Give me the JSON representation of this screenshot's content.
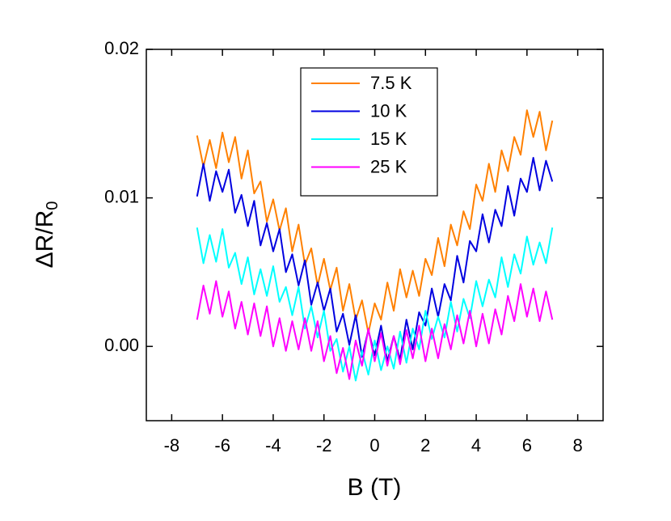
{
  "chart_data": {
    "type": "line",
    "xlabel": "B (T)",
    "ylabel": "ΔR/R",
    "ylabel_sub": "0",
    "xlim": [
      -9,
      9
    ],
    "ylim": [
      -0.005,
      0.02
    ],
    "xticks": [
      -8,
      -6,
      -4,
      -2,
      0,
      2,
      4,
      6,
      8
    ],
    "yticks": [
      {
        "value": 0,
        "label": "0.00"
      },
      0.01,
      0.02
    ],
    "legend": "upper center",
    "x": [
      -7,
      -6.75,
      -6.5,
      -6.25,
      -6,
      -5.75,
      -5.5,
      -5.25,
      -5,
      -4.75,
      -4.5,
      -4.25,
      -4,
      -3.75,
      -3.5,
      -3.25,
      -3,
      -2.75,
      -2.5,
      -2.25,
      -2,
      -1.75,
      -1.5,
      -1.25,
      -1,
      -0.75,
      -0.5,
      -0.25,
      0,
      0.25,
      0.5,
      0.75,
      1,
      1.25,
      1.5,
      1.75,
      2,
      2.25,
      2.5,
      2.75,
      3,
      3.25,
      3.5,
      3.75,
      4,
      4.25,
      4.5,
      4.75,
      5,
      5.25,
      5.5,
      5.75,
      6,
      6.25,
      6.5,
      6.75,
      7
    ],
    "series": [
      {
        "name": "7.5 K",
        "color": "#ff8000",
        "values": [
          0.0142,
          0.0121,
          0.0139,
          0.012,
          0.0144,
          0.0124,
          0.0141,
          0.0113,
          0.0132,
          0.0103,
          0.0111,
          0.0084,
          0.0099,
          0.0078,
          0.0093,
          0.0064,
          0.0082,
          0.0055,
          0.0066,
          0.0041,
          0.0059,
          0.0038,
          0.0053,
          0.0024,
          0.0042,
          0.0018,
          0.0031,
          0.0009,
          0.0029,
          0.0018,
          0.0043,
          0.0024,
          0.0052,
          0.0033,
          0.0051,
          0.0034,
          0.0059,
          0.0048,
          0.0073,
          0.0054,
          0.0082,
          0.0068,
          0.0091,
          0.0079,
          0.0109,
          0.0098,
          0.0123,
          0.0104,
          0.0132,
          0.0118,
          0.0141,
          0.0129,
          0.0159,
          0.0141,
          0.0158,
          0.0132,
          0.0152
        ]
      },
      {
        "name": "10 K",
        "color": "#0000e0",
        "values": [
          0.0101,
          0.0123,
          0.0098,
          0.0118,
          0.0104,
          0.0119,
          0.009,
          0.0102,
          0.0081,
          0.0098,
          0.0068,
          0.0083,
          0.0064,
          0.0079,
          0.005,
          0.0062,
          0.0041,
          0.0058,
          0.0028,
          0.0043,
          0.0024,
          0.0039,
          0.001,
          0.0022,
          0.0001,
          0.0021,
          -0.0007,
          0.0011,
          -0.0006,
          0.0014,
          -0.001,
          0.0007,
          -0.0009,
          0.0018,
          -0.0002,
          0.0023,
          0.0014,
          0.0039,
          0.002,
          0.0042,
          0.0031,
          0.0061,
          0.0043,
          0.0071,
          0.0064,
          0.0089,
          0.007,
          0.0092,
          0.0081,
          0.0108,
          0.0088,
          0.0113,
          0.0104,
          0.0127,
          0.0105,
          0.0125,
          0.0111
        ]
      },
      {
        "name": "15 K",
        "color": "#00ffff",
        "values": [
          0.008,
          0.0056,
          0.0075,
          0.0057,
          0.0079,
          0.0053,
          0.0063,
          0.0042,
          0.006,
          0.0035,
          0.0052,
          0.0034,
          0.0054,
          0.003,
          0.004,
          0.0021,
          0.004,
          0.0012,
          0.0027,
          0.0006,
          0.0024,
          -0.0003,
          0.0005,
          -0.0017,
          0.0,
          -0.0023,
          -0.0003,
          -0.0019,
          0.0004,
          -0.0016,
          0.0,
          -0.0015,
          0.001,
          -0.0011,
          0.0012,
          -0.0002,
          0.0024,
          0.0005,
          0.002,
          0.0006,
          0.003,
          0.001,
          0.0032,
          0.0019,
          0.0044,
          0.0027,
          0.0045,
          0.0033,
          0.006,
          0.004,
          0.0062,
          0.0049,
          0.0074,
          0.0055,
          0.007,
          0.0056,
          0.008
        ]
      },
      {
        "name": "25 K",
        "color": "#ff00ff",
        "values": [
          0.0018,
          0.0041,
          0.0022,
          0.0044,
          0.002,
          0.0037,
          0.0012,
          0.003,
          0.0008,
          0.0029,
          0.0007,
          0.0027,
          0.0,
          0.0019,
          -0.0003,
          0.0017,
          -0.0002,
          0.0019,
          -0.0003,
          0.0017,
          -0.001,
          0.0007,
          -0.0018,
          -0.0001,
          -0.0022,
          0.0004,
          -0.0013,
          0.0012,
          -0.001,
          0.0009,
          -0.0013,
          0.0007,
          -0.0012,
          0.0011,
          -0.0008,
          0.0014,
          -0.001,
          0.0012,
          -0.0008,
          0.0015,
          -0.0002,
          0.0021,
          0.0002,
          0.0024,
          0.0,
          0.0022,
          0.0002,
          0.0025,
          0.0008,
          0.0034,
          0.0017,
          0.0042,
          0.002,
          0.0039,
          0.0017,
          0.0037,
          0.0018
        ]
      }
    ]
  }
}
